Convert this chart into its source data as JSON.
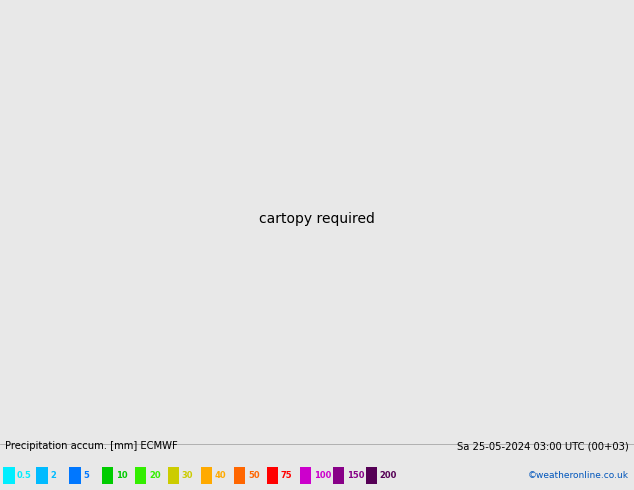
{
  "title_left": "Precipitation accum. [mm] ECMWF",
  "title_right": "Sa 25-05-2024 03:00 UTC (00+03)",
  "credit": "©weatheronline.co.uk",
  "legend_values": [
    "0.5",
    "2",
    "5",
    "10",
    "20",
    "30",
    "40",
    "50",
    "75",
    "100",
    "150",
    "200"
  ],
  "legend_colors": [
    "#00eeff",
    "#00bbff",
    "#0077ff",
    "#00cc00",
    "#33ee00",
    "#cccc00",
    "#ffaa00",
    "#ff6600",
    "#ff0000",
    "#cc00cc",
    "#880088",
    "#550055"
  ],
  "land_color": "#c8d8a0",
  "ocean_color": "#b8c8d8",
  "precip_light": "#a0d8f8",
  "precip_mid": "#60b8f0",
  "isobar_red": "#dd0000",
  "isobar_blue": "#0000cc",
  "label_bg": "none",
  "bottom_bg": "#f0f0f0",
  "fig_width": 6.34,
  "fig_height": 4.9,
  "dpi": 100
}
